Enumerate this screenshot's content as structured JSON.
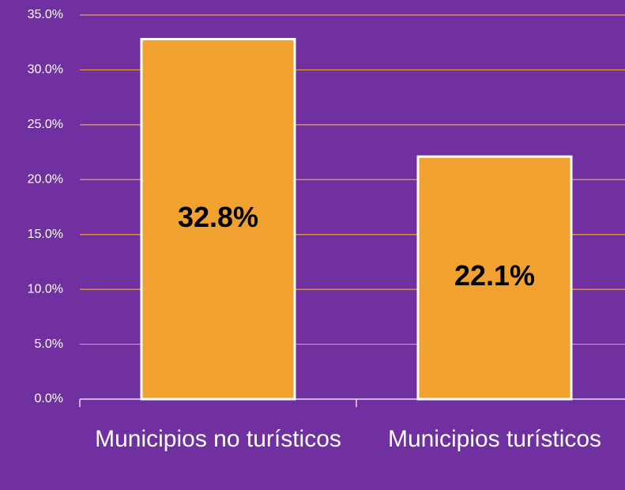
{
  "chart_data": {
    "type": "bar",
    "categories": [
      "Municipios no turísticos",
      "Municipios turísticos"
    ],
    "values": [
      32.8,
      22.1
    ],
    "value_labels": [
      "32.8%",
      "22.1%"
    ],
    "color": "#f0a12f",
    "ylim": [
      0,
      35
    ],
    "yticks": [
      {
        "value": 0,
        "label": "0.0%"
      },
      {
        "value": 5,
        "label": "5.0%"
      },
      {
        "value": 10,
        "label": "10.0%"
      },
      {
        "value": 15,
        "label": "15.0%"
      },
      {
        "value": 20,
        "label": "20.0%"
      },
      {
        "value": 25,
        "label": "25.0%"
      },
      {
        "value": 30,
        "label": "30.0%"
      },
      {
        "value": 35,
        "label": "35.0%"
      }
    ],
    "grid": true
  }
}
